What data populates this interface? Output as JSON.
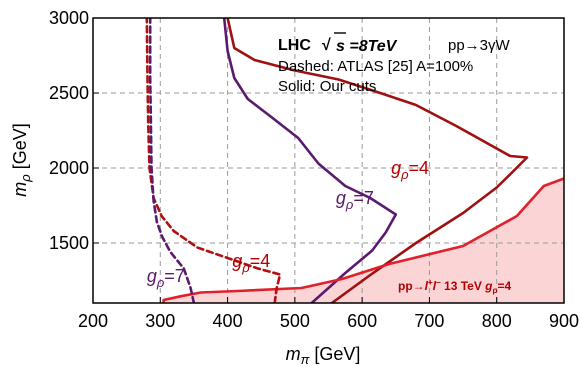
{
  "chart_data": {
    "type": "line",
    "xlabel": "m_π [GeV]",
    "ylabel": "m_ρ [GeV]",
    "xlim": [
      200,
      900
    ],
    "ylim": [
      1100,
      3000
    ],
    "x_ticks": [
      200,
      300,
      400,
      500,
      600,
      700,
      800,
      900
    ],
    "y_ticks": [
      1500,
      2000,
      2500,
      3000
    ],
    "grid": true,
    "annotations": {
      "line1_prefix": "LHC",
      "line1_sqrt": "√",
      "line1_value": "s =8TeV",
      "line1_process": "pp→3γW",
      "line2": "Dashed: ATLAS [25] A=100%",
      "line3": "Solid: Our cuts",
      "lhc13": "pp→l⁺l⁻ 13 TeV g_ρ=4"
    },
    "curve_labels": [
      {
        "text": "g_ρ=4",
        "color": "#b30000",
        "at": [
          643,
          1960
        ]
      },
      {
        "text": "g_ρ=7",
        "color": "#5b1a6e",
        "at": [
          561,
          1760
        ]
      },
      {
        "text": "g_ρ=4",
        "color": "#b30000",
        "at": [
          407,
          1340
        ]
      },
      {
        "text": "g_ρ=7",
        "color": "#5b1a6e",
        "at": [
          280,
          1240
        ]
      }
    ],
    "series": [
      {
        "style": "solid",
        "color": "#a01010",
        "points": [
          [
            555,
            1100
          ],
          [
            610,
            1280
          ],
          [
            680,
            1500
          ],
          [
            750,
            1700
          ],
          [
            800,
            1870
          ],
          [
            825,
            1980
          ],
          [
            845,
            2070
          ],
          [
            820,
            2080
          ],
          [
            740,
            2280
          ],
          [
            680,
            2420
          ],
          [
            620,
            2510
          ],
          [
            565,
            2590
          ],
          [
            500,
            2650
          ],
          [
            440,
            2720
          ],
          [
            410,
            2800
          ],
          [
            400,
            3000
          ]
        ]
      },
      {
        "style": "solid",
        "color": "#5b1a6e",
        "points": [
          [
            525,
            1100
          ],
          [
            575,
            1300
          ],
          [
            615,
            1450
          ],
          [
            635,
            1570
          ],
          [
            650,
            1690
          ],
          [
            612,
            1800
          ],
          [
            575,
            1880
          ],
          [
            535,
            2030
          ],
          [
            505,
            2200
          ],
          [
            465,
            2340
          ],
          [
            430,
            2460
          ],
          [
            410,
            2600
          ],
          [
            400,
            2780
          ],
          [
            395,
            3000
          ]
        ]
      },
      {
        "style": "solid",
        "color": "#e0202a",
        "points": [
          [
            305,
            1100
          ],
          [
            305,
            1120
          ],
          [
            330,
            1145
          ],
          [
            360,
            1170
          ],
          [
            415,
            1180
          ],
          [
            510,
            1200
          ],
          [
            570,
            1260
          ],
          [
            640,
            1360
          ],
          [
            750,
            1480
          ],
          [
            830,
            1680
          ],
          [
            870,
            1880
          ],
          [
            900,
            1930
          ]
        ]
      },
      {
        "style": "dashed",
        "color": "#b01010",
        "points": [
          [
            470,
            1100
          ],
          [
            473,
            1200
          ],
          [
            478,
            1290
          ],
          [
            445,
            1330
          ],
          [
            400,
            1400
          ],
          [
            355,
            1470
          ],
          [
            320,
            1580
          ],
          [
            302,
            1680
          ],
          [
            290,
            1800
          ],
          [
            284,
            2000
          ],
          [
            282,
            2300
          ],
          [
            281,
            2600
          ],
          [
            280,
            3000
          ]
        ]
      },
      {
        "style": "dashed",
        "color": "#5b1a6e",
        "points": [
          [
            350,
            1100
          ],
          [
            345,
            1200
          ],
          [
            335,
            1330
          ],
          [
            315,
            1440
          ],
          [
            303,
            1540
          ],
          [
            295,
            1640
          ],
          [
            290,
            1780
          ],
          [
            287,
            2000
          ],
          [
            286,
            2300
          ],
          [
            285,
            2600
          ],
          [
            285,
            3000
          ]
        ]
      }
    ],
    "shaded_region": {
      "label": "pp→l⁺l⁻ 13 TeV g_ρ=4",
      "color": "#fbd4d6",
      "boundary": [
        [
          305,
          1100
        ],
        [
          305,
          1120
        ],
        [
          330,
          1145
        ],
        [
          360,
          1170
        ],
        [
          415,
          1180
        ],
        [
          510,
          1200
        ],
        [
          570,
          1260
        ],
        [
          640,
          1360
        ],
        [
          750,
          1480
        ],
        [
          830,
          1680
        ],
        [
          870,
          1880
        ],
        [
          900,
          1930
        ],
        [
          900,
          1100
        ]
      ]
    }
  }
}
